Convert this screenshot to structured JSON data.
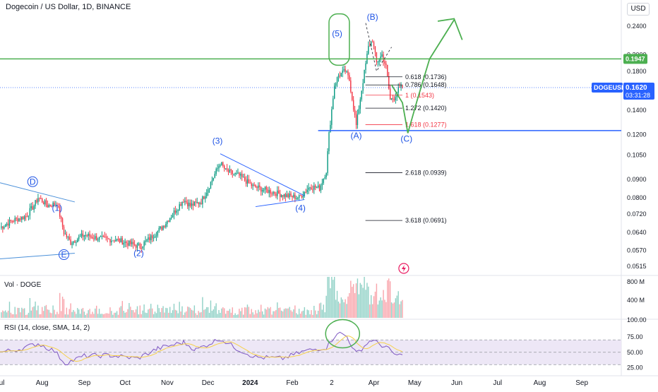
{
  "header": {
    "symbol_title": "Dogecoin / US Dollar, 1D, BINANCE",
    "currency_button": "USD"
  },
  "price_badges": {
    "resistance": "0.1947",
    "ticker_label": "DOGEUSD",
    "last_price": "0.1620",
    "countdown": "03:31:28"
  },
  "volume_pane": {
    "label": "Vol · DOGE",
    "ticks": [
      "800 M",
      "400 M",
      "100.00"
    ]
  },
  "rsi_pane": {
    "label": "RSI (14, close, SMA, 14, 2)",
    "ticks": [
      "75.00",
      "50.00",
      "25.00"
    ]
  },
  "colors": {
    "up": "#089981",
    "down": "#f23645",
    "accent_blue": "#2962ff",
    "wave_blue": "#1e53e5",
    "trend_blue": "#4a90d9",
    "green_line": "#4caf50",
    "fib_red": "#f23645",
    "rsi_line": "#7e57c2",
    "rsi_ma": "#f6d14b",
    "rsi_band": "#ede7f6"
  },
  "chart_data": {
    "type": "candlestick",
    "title": "Dogecoin / US Dollar, 1D, BINANCE",
    "symbol": "DOGEUSD",
    "last_price": 0.162,
    "y_scale": "log",
    "ylim": [
      0.049,
      0.274
    ],
    "y_ticks": [
      "0.2400",
      "0.2000",
      "0.1800",
      "0.1600",
      "0.1400",
      "0.1200",
      "0.1050",
      "0.0900",
      "0.0800",
      "0.0720",
      "0.0640",
      "0.0570",
      "0.0515"
    ],
    "y_tick_values": [
      0.24,
      0.2,
      0.18,
      0.16,
      0.14,
      0.12,
      0.105,
      0.09,
      0.08,
      0.072,
      0.064,
      0.057,
      0.0515
    ],
    "x_range": [
      "2023-07-01",
      "2024-09-30"
    ],
    "x_ticks": [
      {
        "label": "Jul",
        "date": "2023-07-01"
      },
      {
        "label": "Aug",
        "date": "2023-08-01"
      },
      {
        "label": "Sep",
        "date": "2023-09-01"
      },
      {
        "label": "Oct",
        "date": "2023-10-01"
      },
      {
        "label": "Nov",
        "date": "2023-11-01"
      },
      {
        "label": "Dec",
        "date": "2023-12-01"
      },
      {
        "label": "2024",
        "date": "2024-01-01"
      },
      {
        "label": "Feb",
        "date": "2024-02-01"
      },
      {
        "label": "2",
        "date": "2024-03-01"
      },
      {
        "label": "Apr",
        "date": "2024-04-01"
      },
      {
        "label": "May",
        "date": "2024-05-01"
      },
      {
        "label": "Jun",
        "date": "2024-06-01"
      },
      {
        "label": "Jul",
        "date": "2024-07-01"
      },
      {
        "label": "Aug",
        "date": "2024-08-01"
      },
      {
        "label": "Sep",
        "date": "2024-09-01"
      }
    ],
    "price_path": [
      [
        "2023-07-01",
        0.066
      ],
      [
        "2023-07-10",
        0.069
      ],
      [
        "2023-07-20",
        0.071
      ],
      [
        "2023-07-26",
        0.076
      ],
      [
        "2023-07-29",
        0.08
      ],
      [
        "2023-08-05",
        0.076
      ],
      [
        "2023-08-12",
        0.077
      ],
      [
        "2023-08-17",
        0.064
      ],
      [
        "2023-08-22",
        0.06
      ],
      [
        "2023-09-01",
        0.063
      ],
      [
        "2023-09-12",
        0.0615
      ],
      [
        "2023-09-25",
        0.061
      ],
      [
        "2023-10-08",
        0.059
      ],
      [
        "2023-10-12",
        0.0585
      ],
      [
        "2023-10-20",
        0.062
      ],
      [
        "2023-10-28",
        0.066
      ],
      [
        "2023-11-05",
        0.072
      ],
      [
        "2023-11-13",
        0.079
      ],
      [
        "2023-11-18",
        0.076
      ],
      [
        "2023-11-26",
        0.078
      ],
      [
        "2023-12-03",
        0.088
      ],
      [
        "2023-12-10",
        0.1
      ],
      [
        "2023-12-14",
        0.095
      ],
      [
        "2023-12-24",
        0.092
      ],
      [
        "2024-01-03",
        0.086
      ],
      [
        "2024-01-12",
        0.084
      ],
      [
        "2024-01-22",
        0.082
      ],
      [
        "2024-01-28",
        0.081
      ],
      [
        "2024-02-06",
        0.08
      ],
      [
        "2024-02-14",
        0.086
      ],
      [
        "2024-02-21",
        0.085
      ],
      [
        "2024-02-26",
        0.095
      ],
      [
        "2024-02-28",
        0.12
      ],
      [
        "2024-03-03",
        0.165
      ],
      [
        "2024-03-06",
        0.175
      ],
      [
        "2024-03-11",
        0.18
      ],
      [
        "2024-03-14",
        0.17
      ],
      [
        "2024-03-19",
        0.127
      ],
      [
        "2024-03-23",
        0.16
      ],
      [
        "2024-03-28",
        0.21
      ],
      [
        "2024-03-31",
        0.22
      ],
      [
        "2024-04-03",
        0.19
      ],
      [
        "2024-04-07",
        0.2
      ],
      [
        "2024-04-10",
        0.185
      ],
      [
        "2024-04-13",
        0.15
      ],
      [
        "2024-04-16",
        0.152
      ],
      [
        "2024-04-19",
        0.16
      ],
      [
        "2024-04-22",
        0.162
      ]
    ],
    "rsi_path": [
      [
        "2023-07-01",
        50
      ],
      [
        "2023-07-15",
        55
      ],
      [
        "2023-07-29",
        64
      ],
      [
        "2023-08-10",
        52
      ],
      [
        "2023-08-18",
        32
      ],
      [
        "2023-09-01",
        44
      ],
      [
        "2023-09-20",
        45
      ],
      [
        "2023-10-10",
        40
      ],
      [
        "2023-10-25",
        56
      ],
      [
        "2023-11-13",
        66
      ],
      [
        "2023-11-22",
        54
      ],
      [
        "2023-12-10",
        72
      ],
      [
        "2023-12-22",
        56
      ],
      [
        "2024-01-05",
        42
      ],
      [
        "2024-01-25",
        40
      ],
      [
        "2024-02-10",
        52
      ],
      [
        "2024-02-26",
        58
      ],
      [
        "2024-03-05",
        82
      ],
      [
        "2024-03-12",
        76
      ],
      [
        "2024-03-19",
        48
      ],
      [
        "2024-03-30",
        70
      ],
      [
        "2024-04-10",
        58
      ],
      [
        "2024-04-18",
        44
      ],
      [
        "2024-04-22",
        46
      ]
    ],
    "rsi_levels": [
      70,
      50,
      30
    ],
    "rsi_ylim": [
      20,
      100
    ],
    "fib_levels": [
      {
        "label": "0.618 (0.1736)",
        "value": 0.1736,
        "color": "black"
      },
      {
        "label": "0.786 (0.1648)",
        "value": 0.1648,
        "color": "black"
      },
      {
        "label": "1 (0.1543)",
        "value": 0.1543,
        "color": "red"
      },
      {
        "label": "1.272 (0.1420)",
        "value": 0.142,
        "color": "black"
      },
      {
        "label": "1.618 (0.1277)",
        "value": 0.1277,
        "color": "red"
      },
      {
        "label": "2.618 (0.0939)",
        "value": 0.0939,
        "color": "black"
      },
      {
        "label": "3.618 (0.0691)",
        "value": 0.0691,
        "color": "black"
      }
    ],
    "horizontal_lines": [
      {
        "value": 0.1947,
        "color": "green"
      },
      {
        "value": 0.123,
        "color": "blue"
      }
    ],
    "wave_labels": [
      {
        "text": "D",
        "date": "2023-07-25",
        "price": 0.087,
        "circled": true
      },
      {
        "text": "E",
        "date": "2023-08-17",
        "price": 0.0545,
        "circled": true
      },
      {
        "text": "(1)",
        "date": "2023-08-12",
        "price": 0.0735
      },
      {
        "text": "(2)",
        "date": "2023-10-11",
        "price": 0.055
      },
      {
        "text": "(3)",
        "date": "2023-12-08",
        "price": 0.113
      },
      {
        "text": "(4)",
        "date": "2024-02-07",
        "price": 0.0735
      },
      {
        "text": "(5)",
        "date": "2024-03-05",
        "price": 0.225
      },
      {
        "text": "(A)",
        "date": "2024-03-19",
        "price": 0.117
      },
      {
        "text": "(B)",
        "date": "2024-03-31",
        "price": 0.25
      },
      {
        "text": "(C)",
        "date": "2024-04-25",
        "price": 0.1145
      }
    ]
  }
}
